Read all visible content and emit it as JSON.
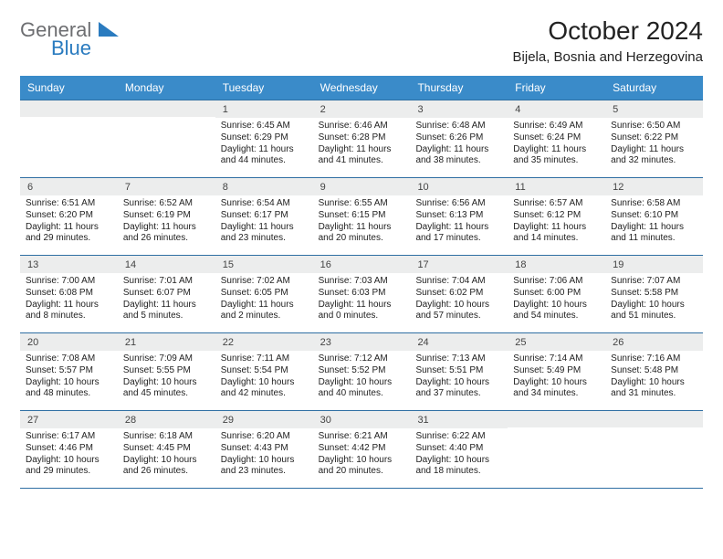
{
  "logo": {
    "line1": "General",
    "line2": "Blue"
  },
  "title": "October 2024",
  "location": "Bijela, Bosnia and Herzegovina",
  "colors": {
    "header_bg": "#3a8bc9",
    "header_text": "#ffffff",
    "rule": "#2f6fa3",
    "daynum_bg": "#eceded",
    "body_text": "#222222",
    "logo_gray": "#6d6e71",
    "logo_blue": "#2a7bbf"
  },
  "typography": {
    "title_fontsize": 28,
    "location_fontsize": 15,
    "dayhead_fontsize": 12,
    "daynum_fontsize": 11,
    "cell_fontsize": 10
  },
  "day_labels": [
    "Sunday",
    "Monday",
    "Tuesday",
    "Wednesday",
    "Thursday",
    "Friday",
    "Saturday"
  ],
  "weeks": [
    [
      {
        "n": "",
        "sr": "",
        "ss": "",
        "dl": ""
      },
      {
        "n": "",
        "sr": "",
        "ss": "",
        "dl": ""
      },
      {
        "n": "1",
        "sr": "Sunrise: 6:45 AM",
        "ss": "Sunset: 6:29 PM",
        "dl": "Daylight: 11 hours and 44 minutes."
      },
      {
        "n": "2",
        "sr": "Sunrise: 6:46 AM",
        "ss": "Sunset: 6:28 PM",
        "dl": "Daylight: 11 hours and 41 minutes."
      },
      {
        "n": "3",
        "sr": "Sunrise: 6:48 AM",
        "ss": "Sunset: 6:26 PM",
        "dl": "Daylight: 11 hours and 38 minutes."
      },
      {
        "n": "4",
        "sr": "Sunrise: 6:49 AM",
        "ss": "Sunset: 6:24 PM",
        "dl": "Daylight: 11 hours and 35 minutes."
      },
      {
        "n": "5",
        "sr": "Sunrise: 6:50 AM",
        "ss": "Sunset: 6:22 PM",
        "dl": "Daylight: 11 hours and 32 minutes."
      }
    ],
    [
      {
        "n": "6",
        "sr": "Sunrise: 6:51 AM",
        "ss": "Sunset: 6:20 PM",
        "dl": "Daylight: 11 hours and 29 minutes."
      },
      {
        "n": "7",
        "sr": "Sunrise: 6:52 AM",
        "ss": "Sunset: 6:19 PM",
        "dl": "Daylight: 11 hours and 26 minutes."
      },
      {
        "n": "8",
        "sr": "Sunrise: 6:54 AM",
        "ss": "Sunset: 6:17 PM",
        "dl": "Daylight: 11 hours and 23 minutes."
      },
      {
        "n": "9",
        "sr": "Sunrise: 6:55 AM",
        "ss": "Sunset: 6:15 PM",
        "dl": "Daylight: 11 hours and 20 minutes."
      },
      {
        "n": "10",
        "sr": "Sunrise: 6:56 AM",
        "ss": "Sunset: 6:13 PM",
        "dl": "Daylight: 11 hours and 17 minutes."
      },
      {
        "n": "11",
        "sr": "Sunrise: 6:57 AM",
        "ss": "Sunset: 6:12 PM",
        "dl": "Daylight: 11 hours and 14 minutes."
      },
      {
        "n": "12",
        "sr": "Sunrise: 6:58 AM",
        "ss": "Sunset: 6:10 PM",
        "dl": "Daylight: 11 hours and 11 minutes."
      }
    ],
    [
      {
        "n": "13",
        "sr": "Sunrise: 7:00 AM",
        "ss": "Sunset: 6:08 PM",
        "dl": "Daylight: 11 hours and 8 minutes."
      },
      {
        "n": "14",
        "sr": "Sunrise: 7:01 AM",
        "ss": "Sunset: 6:07 PM",
        "dl": "Daylight: 11 hours and 5 minutes."
      },
      {
        "n": "15",
        "sr": "Sunrise: 7:02 AM",
        "ss": "Sunset: 6:05 PM",
        "dl": "Daylight: 11 hours and 2 minutes."
      },
      {
        "n": "16",
        "sr": "Sunrise: 7:03 AM",
        "ss": "Sunset: 6:03 PM",
        "dl": "Daylight: 11 hours and 0 minutes."
      },
      {
        "n": "17",
        "sr": "Sunrise: 7:04 AM",
        "ss": "Sunset: 6:02 PM",
        "dl": "Daylight: 10 hours and 57 minutes."
      },
      {
        "n": "18",
        "sr": "Sunrise: 7:06 AM",
        "ss": "Sunset: 6:00 PM",
        "dl": "Daylight: 10 hours and 54 minutes."
      },
      {
        "n": "19",
        "sr": "Sunrise: 7:07 AM",
        "ss": "Sunset: 5:58 PM",
        "dl": "Daylight: 10 hours and 51 minutes."
      }
    ],
    [
      {
        "n": "20",
        "sr": "Sunrise: 7:08 AM",
        "ss": "Sunset: 5:57 PM",
        "dl": "Daylight: 10 hours and 48 minutes."
      },
      {
        "n": "21",
        "sr": "Sunrise: 7:09 AM",
        "ss": "Sunset: 5:55 PM",
        "dl": "Daylight: 10 hours and 45 minutes."
      },
      {
        "n": "22",
        "sr": "Sunrise: 7:11 AM",
        "ss": "Sunset: 5:54 PM",
        "dl": "Daylight: 10 hours and 42 minutes."
      },
      {
        "n": "23",
        "sr": "Sunrise: 7:12 AM",
        "ss": "Sunset: 5:52 PM",
        "dl": "Daylight: 10 hours and 40 minutes."
      },
      {
        "n": "24",
        "sr": "Sunrise: 7:13 AM",
        "ss": "Sunset: 5:51 PM",
        "dl": "Daylight: 10 hours and 37 minutes."
      },
      {
        "n": "25",
        "sr": "Sunrise: 7:14 AM",
        "ss": "Sunset: 5:49 PM",
        "dl": "Daylight: 10 hours and 34 minutes."
      },
      {
        "n": "26",
        "sr": "Sunrise: 7:16 AM",
        "ss": "Sunset: 5:48 PM",
        "dl": "Daylight: 10 hours and 31 minutes."
      }
    ],
    [
      {
        "n": "27",
        "sr": "Sunrise: 6:17 AM",
        "ss": "Sunset: 4:46 PM",
        "dl": "Daylight: 10 hours and 29 minutes."
      },
      {
        "n": "28",
        "sr": "Sunrise: 6:18 AM",
        "ss": "Sunset: 4:45 PM",
        "dl": "Daylight: 10 hours and 26 minutes."
      },
      {
        "n": "29",
        "sr": "Sunrise: 6:20 AM",
        "ss": "Sunset: 4:43 PM",
        "dl": "Daylight: 10 hours and 23 minutes."
      },
      {
        "n": "30",
        "sr": "Sunrise: 6:21 AM",
        "ss": "Sunset: 4:42 PM",
        "dl": "Daylight: 10 hours and 20 minutes."
      },
      {
        "n": "31",
        "sr": "Sunrise: 6:22 AM",
        "ss": "Sunset: 4:40 PM",
        "dl": "Daylight: 10 hours and 18 minutes."
      },
      {
        "n": "",
        "sr": "",
        "ss": "",
        "dl": ""
      },
      {
        "n": "",
        "sr": "",
        "ss": "",
        "dl": ""
      }
    ]
  ]
}
